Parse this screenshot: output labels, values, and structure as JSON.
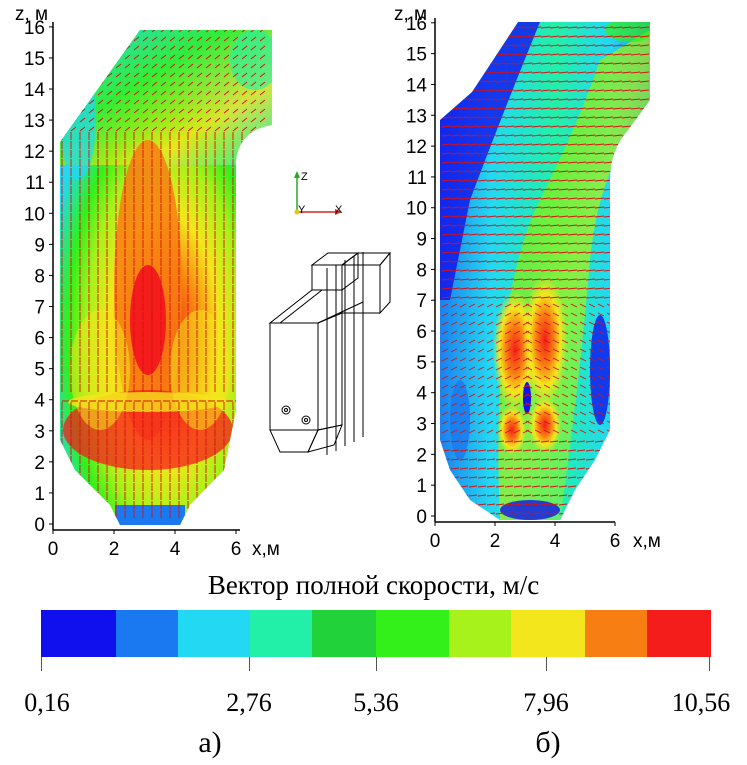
{
  "panels": [
    {
      "id": "a",
      "caption": "а)",
      "z_axis_label": "z, м",
      "x_axis_label": "x,м",
      "z_ticks": [
        "0",
        "1",
        "2",
        "3",
        "4",
        "5",
        "6",
        "7",
        "8",
        "9",
        "10",
        "11",
        "12",
        "13",
        "14",
        "15",
        "16"
      ],
      "x_ticks": [
        "0",
        "2",
        "4",
        "6"
      ]
    },
    {
      "id": "b",
      "caption": "б)",
      "z_axis_label": "z, м",
      "x_axis_label": "x,м",
      "z_ticks": [
        "0",
        "1",
        "2",
        "3",
        "4",
        "5",
        "6",
        "7",
        "8",
        "9",
        "10",
        "11",
        "12",
        "13",
        "14",
        "15",
        "16"
      ],
      "x_ticks": [
        "0",
        "2",
        "4",
        "6"
      ]
    }
  ],
  "orientation_triad": {
    "z_label": "Z",
    "y_label": "Y",
    "x_label": "X"
  },
  "legend": {
    "title": "Вектор полной скорости, м/с",
    "colors": [
      "#1010ee",
      "#1a78f0",
      "#22d8f2",
      "#22f0a8",
      "#22d23a",
      "#33f01a",
      "#a6f21a",
      "#f4e61c",
      "#f77e12",
      "#f51c1c"
    ],
    "tick_labels": [
      "0,16",
      "2,76",
      "5,36",
      "7,96",
      "10,56"
    ]
  }
}
